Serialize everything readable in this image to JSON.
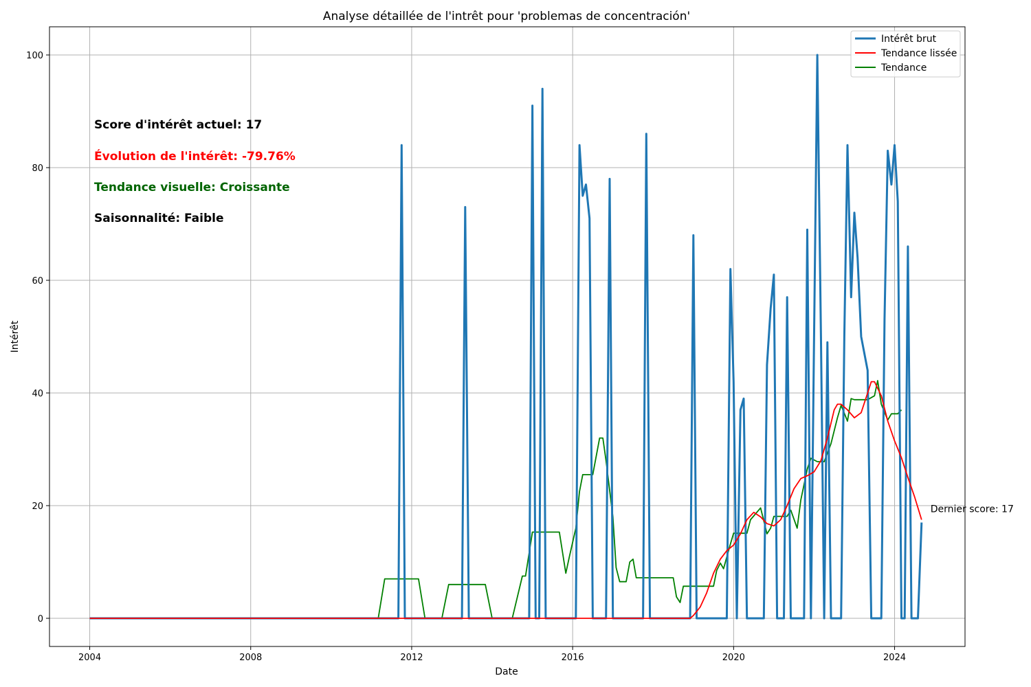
{
  "chart_data": {
    "type": "line",
    "title": "Analyse détaillée de l'intrêt pour 'problemas de concentración'",
    "xlabel": "Date",
    "ylabel": "Intérêt",
    "xlim": [
      2003.0,
      2025.75
    ],
    "ylim": [
      -5,
      105
    ],
    "xticks": [
      2004,
      2008,
      2012,
      2016,
      2020,
      2024
    ],
    "yticks": [
      0,
      20,
      40,
      60,
      80,
      100
    ],
    "grid": true,
    "legend_position": "top-right",
    "colors": {
      "raw": "#1f77b4",
      "smooth": "#ff0000",
      "trend": "#008000",
      "orange": "#ff0000",
      "dark_green": "#006400"
    },
    "series": [
      {
        "key": "raw",
        "name": "Intérêt brut",
        "points": [
          [
            2004.0,
            0
          ],
          [
            2011.67,
            0
          ],
          [
            2011.75,
            84
          ],
          [
            2011.83,
            0
          ],
          [
            2013.25,
            0
          ],
          [
            2013.33,
            73
          ],
          [
            2013.42,
            0
          ],
          [
            2014.92,
            0
          ],
          [
            2015.0,
            91
          ],
          [
            2015.08,
            0
          ],
          [
            2015.17,
            0
          ],
          [
            2015.25,
            94
          ],
          [
            2015.33,
            0
          ],
          [
            2016.08,
            0
          ],
          [
            2016.17,
            84
          ],
          [
            2016.25,
            75
          ],
          [
            2016.33,
            77
          ],
          [
            2016.42,
            71
          ],
          [
            2016.5,
            0
          ],
          [
            2016.83,
            0
          ],
          [
            2016.92,
            78
          ],
          [
            2017.0,
            0
          ],
          [
            2017.75,
            0
          ],
          [
            2017.83,
            86
          ],
          [
            2017.92,
            0
          ],
          [
            2018.92,
            0
          ],
          [
            2019.0,
            68
          ],
          [
            2019.08,
            0
          ],
          [
            2019.83,
            0
          ],
          [
            2019.92,
            62
          ],
          [
            2020.0,
            42
          ],
          [
            2020.08,
            0
          ],
          [
            2020.17,
            37
          ],
          [
            2020.25,
            39
          ],
          [
            2020.33,
            0
          ],
          [
            2020.75,
            0
          ],
          [
            2020.83,
            45
          ],
          [
            2020.92,
            55
          ],
          [
            2021.0,
            61
          ],
          [
            2021.08,
            0
          ],
          [
            2021.25,
            0
          ],
          [
            2021.33,
            57
          ],
          [
            2021.42,
            0
          ],
          [
            2021.75,
            0
          ],
          [
            2021.83,
            69
          ],
          [
            2021.92,
            0
          ],
          [
            2022.0,
            50
          ],
          [
            2022.08,
            100
          ],
          [
            2022.17,
            50
          ],
          [
            2022.25,
            0
          ],
          [
            2022.33,
            49
          ],
          [
            2022.42,
            0
          ],
          [
            2022.67,
            0
          ],
          [
            2022.75,
            50
          ],
          [
            2022.83,
            84
          ],
          [
            2022.92,
            57
          ],
          [
            2023.0,
            72
          ],
          [
            2023.08,
            64
          ],
          [
            2023.17,
            50
          ],
          [
            2023.33,
            44
          ],
          [
            2023.42,
            0
          ],
          [
            2023.67,
            0
          ],
          [
            2023.75,
            53
          ],
          [
            2023.83,
            83
          ],
          [
            2023.92,
            77
          ],
          [
            2024.0,
            84
          ],
          [
            2024.08,
            74
          ],
          [
            2024.17,
            0
          ],
          [
            2024.25,
            0
          ],
          [
            2024.33,
            66
          ],
          [
            2024.42,
            0
          ],
          [
            2024.58,
            0
          ],
          [
            2024.67,
            17
          ]
        ]
      },
      {
        "key": "smooth",
        "name": "Tendance lissée",
        "points": [
          [
            2004.0,
            0
          ],
          [
            2018.92,
            0
          ],
          [
            2019.0,
            0.5
          ],
          [
            2019.17,
            2
          ],
          [
            2019.33,
            4.5
          ],
          [
            2019.5,
            8
          ],
          [
            2019.67,
            10.5
          ],
          [
            2019.83,
            12
          ],
          [
            2020.0,
            13
          ],
          [
            2020.17,
            15
          ],
          [
            2020.33,
            17.5
          ],
          [
            2020.5,
            18.8
          ],
          [
            2020.67,
            18
          ],
          [
            2020.83,
            16.8
          ],
          [
            2021.0,
            16.4
          ],
          [
            2021.17,
            17.5
          ],
          [
            2021.33,
            20
          ],
          [
            2021.5,
            23
          ],
          [
            2021.67,
            24.8
          ],
          [
            2021.83,
            25.3
          ],
          [
            2022.0,
            26
          ],
          [
            2022.17,
            28
          ],
          [
            2022.33,
            32
          ],
          [
            2022.5,
            37
          ],
          [
            2022.58,
            38
          ],
          [
            2022.67,
            38
          ],
          [
            2022.83,
            37
          ],
          [
            2023.0,
            35.6
          ],
          [
            2023.17,
            36.5
          ],
          [
            2023.33,
            40
          ],
          [
            2023.42,
            42
          ],
          [
            2023.5,
            42
          ],
          [
            2023.67,
            39.5
          ],
          [
            2023.83,
            35
          ],
          [
            2024.0,
            31.5
          ],
          [
            2024.17,
            28.5
          ],
          [
            2024.33,
            25
          ],
          [
            2024.5,
            21.5
          ],
          [
            2024.67,
            17.5
          ]
        ]
      },
      {
        "key": "trend",
        "name": "Tendance",
        "points": [
          [
            2004.5,
            0
          ],
          [
            2011.17,
            0
          ],
          [
            2011.33,
            7
          ],
          [
            2012.17,
            7
          ],
          [
            2012.33,
            0
          ],
          [
            2012.75,
            0
          ],
          [
            2012.92,
            6
          ],
          [
            2013.83,
            6
          ],
          [
            2014.0,
            0
          ],
          [
            2014.5,
            0
          ],
          [
            2014.75,
            7.5
          ],
          [
            2014.83,
            7.5
          ],
          [
            2015.0,
            15.3
          ],
          [
            2015.67,
            15.3
          ],
          [
            2015.83,
            8
          ],
          [
            2015.92,
            11
          ],
          [
            2016.08,
            16
          ],
          [
            2016.17,
            22.5
          ],
          [
            2016.25,
            25.5
          ],
          [
            2016.5,
            25.5
          ],
          [
            2016.67,
            32
          ],
          [
            2016.75,
            32
          ],
          [
            2016.83,
            28
          ],
          [
            2017.0,
            18
          ],
          [
            2017.08,
            9
          ],
          [
            2017.17,
            6.5
          ],
          [
            2017.33,
            6.5
          ],
          [
            2017.42,
            10
          ],
          [
            2017.5,
            10.5
          ],
          [
            2017.58,
            7.2
          ],
          [
            2018.5,
            7.2
          ],
          [
            2018.58,
            3.8
          ],
          [
            2018.67,
            2.8
          ],
          [
            2018.75,
            5.7
          ],
          [
            2019.5,
            5.7
          ],
          [
            2019.58,
            8.5
          ],
          [
            2019.67,
            9.8
          ],
          [
            2019.75,
            8.8
          ],
          [
            2019.92,
            13.2
          ],
          [
            2020.0,
            15.1
          ],
          [
            2020.33,
            15.1
          ],
          [
            2020.42,
            17.5
          ],
          [
            2020.67,
            19.6
          ],
          [
            2020.83,
            15
          ],
          [
            2020.92,
            16
          ],
          [
            2021.0,
            18.1
          ],
          [
            2021.33,
            18.1
          ],
          [
            2021.42,
            19.2
          ],
          [
            2021.58,
            16
          ],
          [
            2021.67,
            21
          ],
          [
            2021.83,
            26.5
          ],
          [
            2021.92,
            28.4
          ],
          [
            2022.08,
            27.8
          ],
          [
            2022.25,
            27.8
          ],
          [
            2022.42,
            31
          ],
          [
            2022.58,
            35.6
          ],
          [
            2022.67,
            37.8
          ],
          [
            2022.83,
            35
          ],
          [
            2022.92,
            39
          ],
          [
            2023.0,
            38.8
          ],
          [
            2023.33,
            38.8
          ],
          [
            2023.5,
            39.5
          ],
          [
            2023.58,
            42.2
          ],
          [
            2023.67,
            38
          ],
          [
            2023.83,
            35.2
          ],
          [
            2023.92,
            36.3
          ],
          [
            2024.08,
            36.3
          ],
          [
            2024.17,
            37
          ]
        ]
      }
    ],
    "annotations": [
      {
        "text": "Score d'intérêt actuel: 17",
        "color": "#000000"
      },
      {
        "text": "Évolution de l'intérêt: -79.76%",
        "color": "#ff0000"
      },
      {
        "text": "Tendance visuelle: Croissante",
        "color": "#006400"
      },
      {
        "text": "Saisonnalité: Faible",
        "color": "#000000"
      }
    ],
    "last_label": {
      "text": "Dernier score: 17",
      "x": 2024.67,
      "y": 17
    }
  }
}
